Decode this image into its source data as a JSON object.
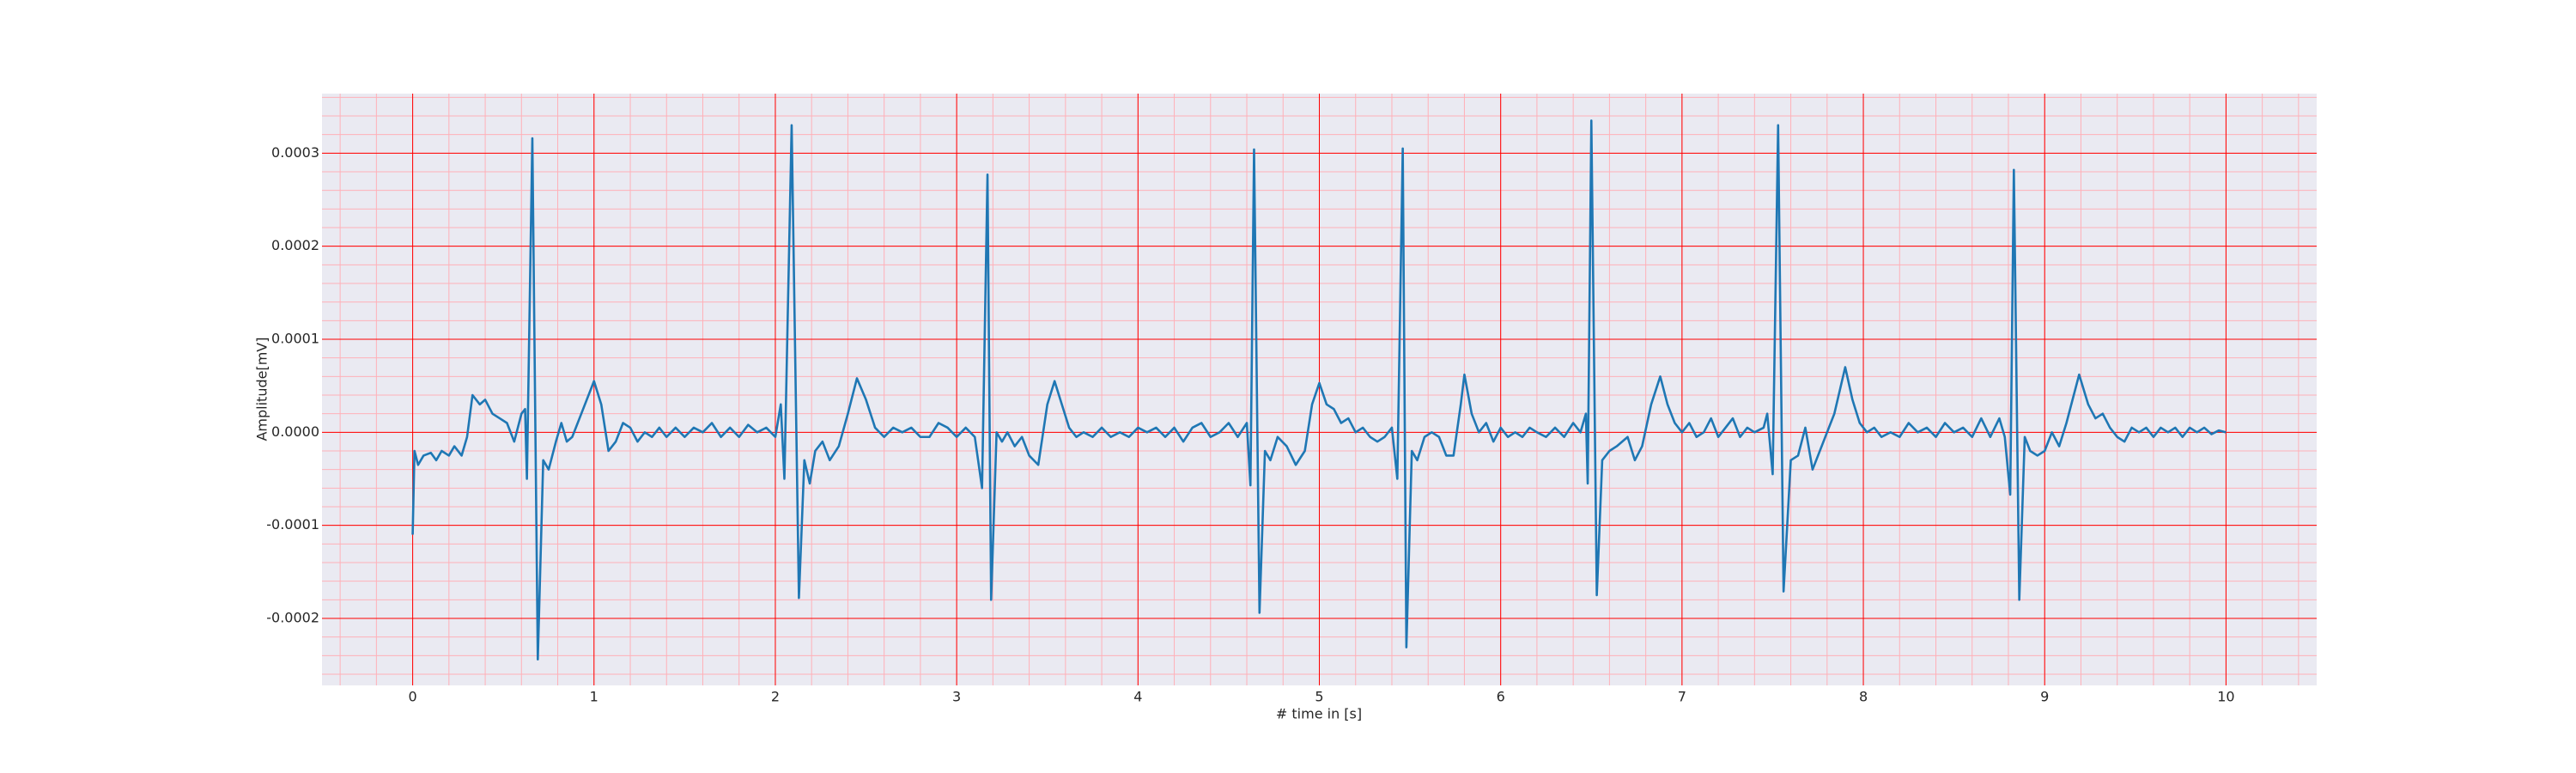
{
  "chart_data": {
    "type": "line",
    "xlabel": "# time in [s]",
    "ylabel": "Amplitude[mV]",
    "xlim": [
      -0.5,
      10.5
    ],
    "xticks": [
      0,
      1,
      2,
      3,
      4,
      5,
      6,
      7,
      8,
      9,
      10
    ],
    "ylim": [
      -0.000272,
      0.000364
    ],
    "yticks": [
      {
        "value": -0.0002,
        "label": "-0.0002"
      },
      {
        "value": -0.0001,
        "label": "-0.0001"
      },
      {
        "value": 0,
        "label": "0.0000"
      },
      {
        "value": 0.0001,
        "label": "0.0001"
      },
      {
        "value": 0.0002,
        "label": "0.0002"
      },
      {
        "value": 0.0003,
        "label": "0.0003"
      }
    ],
    "grid": true,
    "minor_grid": true,
    "grid_color": "#ff0000",
    "minor_grid_color": "#ffb0b8",
    "background": "#eaeaf2",
    "x": [
      0,
      0.01,
      0.03,
      0.06,
      0.1,
      0.13,
      0.16,
      0.2,
      0.23,
      0.27,
      0.3,
      0.33,
      0.37,
      0.4,
      0.44,
      0.48,
      0.52,
      0.56,
      0.6,
      0.62,
      0.63,
      0.66,
      0.69,
      0.72,
      0.75,
      0.79,
      0.82,
      0.85,
      0.88,
      0.93,
      1.0,
      1.04,
      1.08,
      1.12,
      1.16,
      1.2,
      1.24,
      1.28,
      1.32,
      1.36,
      1.4,
      1.45,
      1.5,
      1.55,
      1.6,
      1.65,
      1.7,
      1.75,
      1.8,
      1.85,
      1.9,
      1.95,
      2.0,
      2.03,
      2.05,
      2.09,
      2.13,
      2.16,
      2.19,
      2.22,
      2.26,
      2.3,
      2.35,
      2.4,
      2.45,
      2.5,
      2.55,
      2.6,
      2.65,
      2.7,
      2.75,
      2.8,
      2.85,
      2.9,
      2.95,
      3.0,
      3.05,
      3.1,
      3.14,
      3.17,
      3.19,
      3.22,
      3.25,
      3.28,
      3.32,
      3.36,
      3.4,
      3.45,
      3.5,
      3.54,
      3.58,
      3.62,
      3.66,
      3.7,
      3.75,
      3.8,
      3.85,
      3.9,
      3.95,
      4.0,
      4.05,
      4.1,
      4.15,
      4.2,
      4.25,
      4.3,
      4.35,
      4.4,
      4.45,
      4.5,
      4.55,
      4.6,
      4.62,
      4.64,
      4.67,
      4.7,
      4.73,
      4.77,
      4.82,
      4.87,
      4.92,
      4.96,
      5.0,
      5.04,
      5.08,
      5.12,
      5.16,
      5.2,
      5.24,
      5.28,
      5.32,
      5.36,
      5.4,
      5.43,
      5.46,
      5.48,
      5.51,
      5.54,
      5.58,
      5.62,
      5.66,
      5.7,
      5.74,
      5.78,
      5.8,
      5.84,
      5.88,
      5.92,
      5.96,
      6.0,
      6.04,
      6.08,
      6.12,
      6.16,
      6.2,
      6.25,
      6.3,
      6.35,
      6.4,
      6.44,
      6.47,
      6.48,
      6.5,
      6.53,
      6.56,
      6.6,
      6.64,
      6.7,
      6.74,
      6.78,
      6.83,
      6.88,
      6.92,
      6.96,
      7.0,
      7.04,
      7.08,
      7.12,
      7.16,
      7.2,
      7.24,
      7.28,
      7.32,
      7.36,
      7.4,
      7.45,
      7.47,
      7.5,
      7.53,
      7.56,
      7.6,
      7.64,
      7.68,
      7.72,
      7.78,
      7.84,
      7.9,
      7.94,
      7.98,
      8.02,
      8.06,
      8.1,
      8.15,
      8.2,
      8.25,
      8.3,
      8.35,
      8.4,
      8.45,
      8.5,
      8.55,
      8.6,
      8.65,
      8.7,
      8.75,
      8.78,
      8.81,
      8.83,
      8.86,
      8.89,
      8.92,
      8.96,
      9.0,
      9.04,
      9.08,
      9.12,
      9.19,
      9.24,
      9.28,
      9.32,
      9.36,
      9.4,
      9.44,
      9.48,
      9.52,
      9.56,
      9.6,
      9.64,
      9.68,
      9.72,
      9.76,
      9.8,
      9.84,
      9.88,
      9.92,
      9.96,
      10.0
    ],
    "series": [
      {
        "color": "#1f77b4",
        "values": [
          -0.00011,
          -2e-05,
          -3.5e-05,
          -2.5e-05,
          -2.2e-05,
          -3e-05,
          -2e-05,
          -2.5e-05,
          -1.5e-05,
          -2.5e-05,
          -5e-06,
          4e-05,
          3e-05,
          3.5e-05,
          2e-05,
          1.5e-05,
          1e-05,
          -1e-05,
          2e-05,
          2.5e-05,
          -5e-05,
          0.000316,
          -0.000244,
          -3e-05,
          -4e-05,
          -1e-05,
          1e-05,
          -1e-05,
          -5e-06,
          2e-05,
          5.5e-05,
          3e-05,
          -2e-05,
          -1e-05,
          1e-05,
          5e-06,
          -1e-05,
          0,
          -5e-06,
          5e-06,
          -5e-06,
          5e-06,
          -5e-06,
          5e-06,
          0,
          1e-05,
          -5e-06,
          5e-06,
          -5e-06,
          8e-06,
          0,
          5e-06,
          -5e-06,
          3e-05,
          -5e-05,
          0.00033,
          -0.000178,
          -3e-05,
          -5.5e-05,
          -2e-05,
          -1e-05,
          -3e-05,
          -1.5e-05,
          2e-05,
          5.8e-05,
          3.5e-05,
          5e-06,
          -5e-06,
          5e-06,
          0,
          5e-06,
          -5e-06,
          -5e-06,
          1e-05,
          5e-06,
          -5e-06,
          5e-06,
          -5e-06,
          -6e-05,
          0.000277,
          -0.00018,
          0,
          -1e-05,
          0,
          -1.5e-05,
          -5e-06,
          -2.5e-05,
          -3.5e-05,
          3e-05,
          5.5e-05,
          3e-05,
          5e-06,
          -5e-06,
          0,
          -5e-06,
          5e-06,
          -5e-06,
          0,
          -5e-06,
          5e-06,
          0,
          5e-06,
          -5e-06,
          5e-06,
          -1e-05,
          5e-06,
          1e-05,
          -5e-06,
          0,
          1e-05,
          -5e-06,
          1e-05,
          -5.7e-05,
          0.000304,
          -0.000194,
          -2e-05,
          -3e-05,
          -5e-06,
          -1.5e-05,
          -3.5e-05,
          -2e-05,
          3e-05,
          5.3e-05,
          3e-05,
          2.5e-05,
          1e-05,
          1.5e-05,
          0,
          5e-06,
          -5e-06,
          -1e-05,
          -5e-06,
          5e-06,
          -5e-05,
          0.000305,
          -0.000231,
          -2e-05,
          -3e-05,
          -5e-06,
          0,
          -5e-06,
          -2.5e-05,
          -2.5e-05,
          3e-05,
          6.2e-05,
          2e-05,
          0,
          1e-05,
          -1e-05,
          5e-06,
          -5e-06,
          0,
          -5e-06,
          5e-06,
          0,
          -5e-06,
          5e-06,
          -5e-06,
          1e-05,
          0,
          2e-05,
          -5.5e-05,
          0.000335,
          -0.000175,
          -3e-05,
          -2e-05,
          -1.5e-05,
          -5e-06,
          -3e-05,
          -1.5e-05,
          3e-05,
          6e-05,
          3e-05,
          1e-05,
          0,
          1e-05,
          -5e-06,
          0,
          1.5e-05,
          -5e-06,
          5e-06,
          1.5e-05,
          -5e-06,
          5e-06,
          0,
          5e-06,
          2e-05,
          -4.5e-05,
          0.00033,
          -0.000171,
          -3e-05,
          -2.5e-05,
          5e-06,
          -4e-05,
          -1e-05,
          2e-05,
          7e-05,
          3.5e-05,
          1e-05,
          0,
          5e-06,
          -5e-06,
          0,
          -5e-06,
          1e-05,
          0,
          5e-06,
          -5e-06,
          1e-05,
          0,
          5e-06,
          -5e-06,
          1.5e-05,
          -5e-06,
          1.5e-05,
          -5e-06,
          -6.7e-05,
          0.000282,
          -0.00018,
          -5e-06,
          -2e-05,
          -2.5e-05,
          -2e-05,
          0,
          -1.5e-05,
          1e-05,
          6.2e-05,
          3e-05,
          1.5e-05,
          2e-05,
          5e-06,
          -5e-06,
          -1e-05,
          5e-06,
          0,
          5e-06,
          -5e-06,
          5e-06,
          0,
          5e-06,
          -5e-06,
          5e-06,
          0,
          5e-06,
          -2e-06,
          2e-06,
          0
        ]
      }
    ]
  }
}
